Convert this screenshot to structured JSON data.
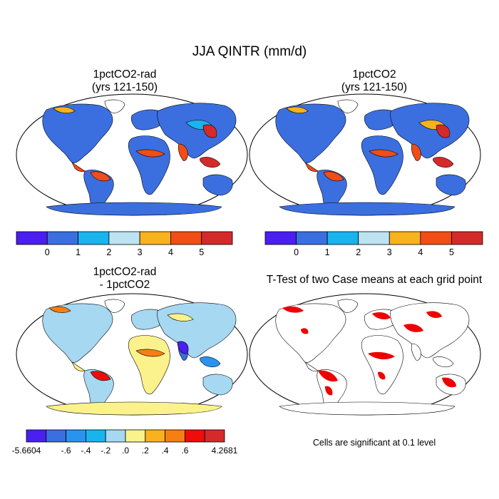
{
  "figure": {
    "main_title": "JJA QINTR (mm/d)",
    "panels": [
      {
        "title_line1": "1pctCO2-rad",
        "title_line2": "(yrs 121-150)"
      },
      {
        "title_line1": "1pctCO2",
        "title_line2": "(yrs 121-150)"
      },
      {
        "title_line1": "1pctCO2-rad",
        "title_line2": "- 1pctCO2"
      },
      {
        "title_line1": "T-Test of two Case means at each grid point",
        "title_line2": ""
      }
    ],
    "significance_note": "Cells are significant at 0.1 level"
  },
  "colorbars": {
    "top": {
      "colors": [
        "#4a1ff0",
        "#3b6fe0",
        "#19b4ee",
        "#bde3f2",
        "#f7b21e",
        "#f24d16",
        "#d42a2a"
      ],
      "labels": [
        "0",
        "1",
        "2",
        "3",
        "4",
        "5"
      ]
    },
    "bottom": {
      "colors": [
        "#4a1ff0",
        "#3b6fe0",
        "#2a93ef",
        "#19b4ee",
        "#a6d8f2",
        "#fbf28c",
        "#f7b21e",
        "#f57f12",
        "#f00c0c",
        "#d42a2a"
      ],
      "labels": [
        "-5.6604",
        "-.6",
        "-.4",
        "-.2",
        ".0",
        ".2",
        ".4",
        ".6",
        "4.2681"
      ]
    }
  },
  "map_colors": {
    "ocean": "#ffffff",
    "coast": "#000000",
    "significant": "#ee0000"
  }
}
